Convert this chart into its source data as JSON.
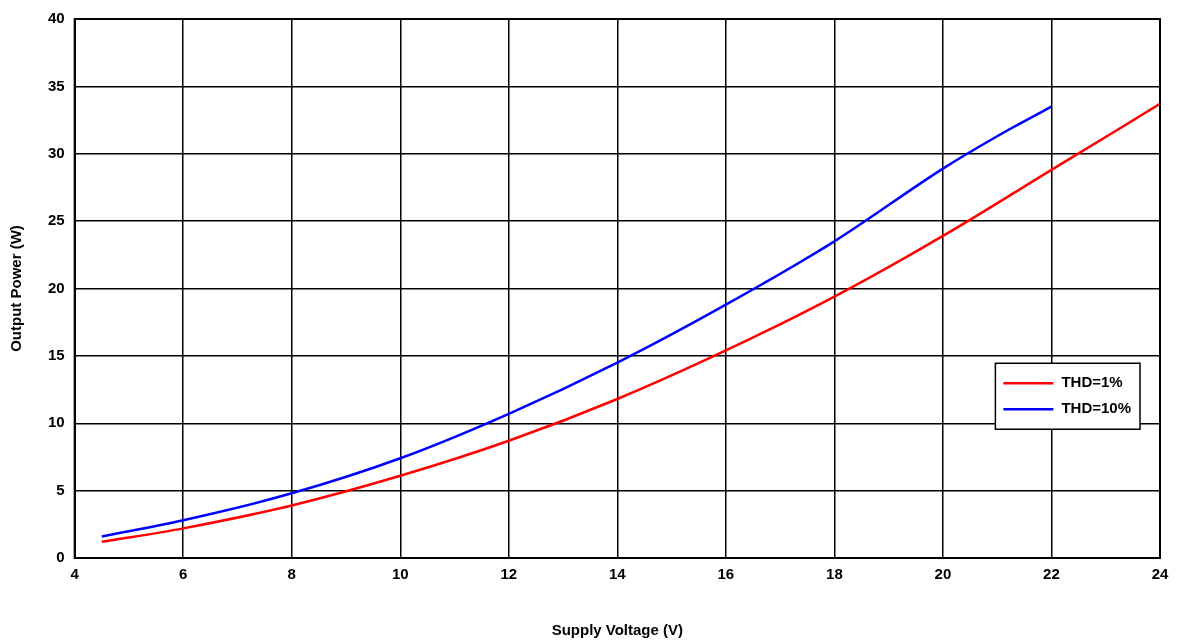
{
  "chart_data": {
    "type": "line",
    "xlabel": "Supply Voltage (V)",
    "ylabel": "Output Power (W)",
    "xlim": [
      4,
      24
    ],
    "xticks": [
      4,
      6,
      8,
      10,
      12,
      14,
      16,
      18,
      20,
      22,
      24
    ],
    "ylim": [
      0,
      40
    ],
    "yticks": [
      0,
      5,
      10,
      15,
      20,
      25,
      30,
      35,
      40
    ],
    "grid": true,
    "legend": "right",
    "line_style": "solid",
    "marker": "none",
    "series": [
      {
        "name": "THD=1%",
        "color": "#ff0000",
        "x": [
          4.5,
          6,
          8,
          10,
          12,
          14,
          16,
          18,
          20,
          22,
          24
        ],
        "values": [
          1.2,
          2.2,
          3.9,
          6.1,
          8.7,
          11.8,
          15.4,
          19.4,
          23.9,
          28.8,
          33.7
        ]
      },
      {
        "name": "THD=10%",
        "color": "#0000ff",
        "x": [
          4.5,
          6,
          8,
          10,
          12,
          14,
          16,
          18,
          20,
          21,
          22
        ],
        "values": [
          1.6,
          2.8,
          4.8,
          7.4,
          10.7,
          14.5,
          18.8,
          23.5,
          28.9,
          31.3,
          33.5
        ]
      }
    ]
  }
}
